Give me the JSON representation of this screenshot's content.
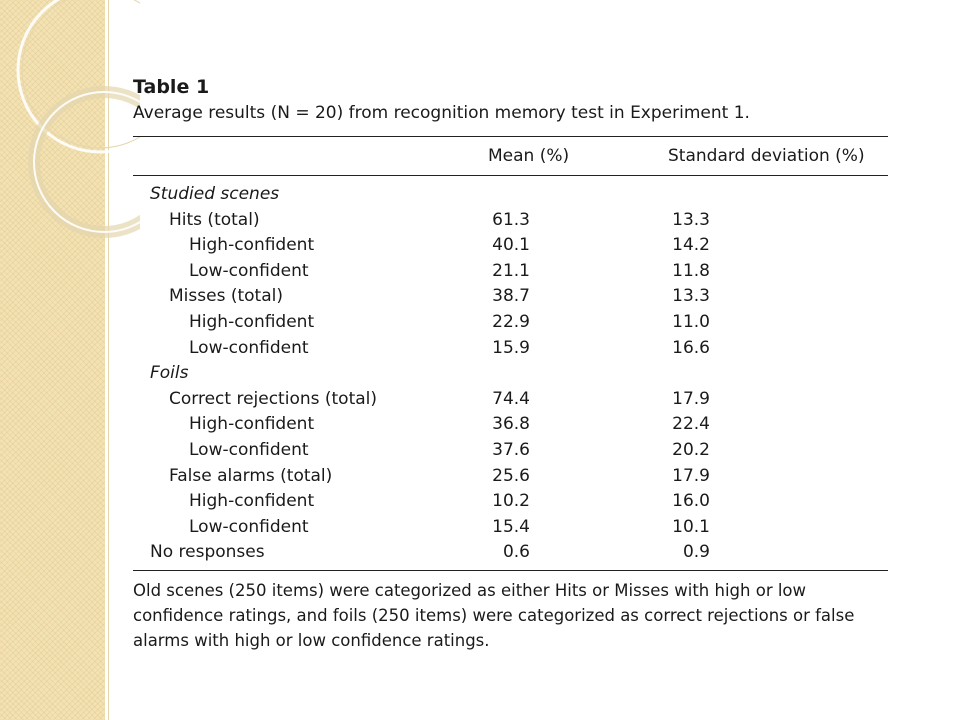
{
  "table": {
    "label": "Table 1",
    "caption": "Average results (N = 20) from recognition memory test in Experiment 1.",
    "columns": [
      "",
      "Mean (%)",
      "Standard deviation (%)"
    ],
    "rows": [
      {
        "label": "Studied scenes",
        "level": 0,
        "section": true,
        "mean": "",
        "sd": ""
      },
      {
        "label": "Hits (total)",
        "level": 1,
        "section": false,
        "mean": "61.3",
        "sd": "13.3"
      },
      {
        "label": "High-confident",
        "level": 2,
        "section": false,
        "mean": "40.1",
        "sd": "14.2"
      },
      {
        "label": "Low-confident",
        "level": 2,
        "section": false,
        "mean": "21.1",
        "sd": "11.8"
      },
      {
        "label": "Misses (total)",
        "level": 1,
        "section": false,
        "mean": "38.7",
        "sd": "13.3"
      },
      {
        "label": "High-confident",
        "level": 2,
        "section": false,
        "mean": "22.9",
        "sd": "11.0"
      },
      {
        "label": "Low-confident",
        "level": 2,
        "section": false,
        "mean": "15.9",
        "sd": "16.6"
      },
      {
        "label": "Foils",
        "level": 0,
        "section": true,
        "mean": "",
        "sd": ""
      },
      {
        "label": "Correct rejections (total)",
        "level": 1,
        "section": false,
        "mean": "74.4",
        "sd": "17.9"
      },
      {
        "label": "High-confident",
        "level": 2,
        "section": false,
        "mean": "36.8",
        "sd": "22.4"
      },
      {
        "label": "Low-confident",
        "level": 2,
        "section": false,
        "mean": "37.6",
        "sd": "20.2"
      },
      {
        "label": "False alarms (total)",
        "level": 1,
        "section": false,
        "mean": "25.6",
        "sd": "17.9"
      },
      {
        "label": "High-confident",
        "level": 2,
        "section": false,
        "mean": "10.2",
        "sd": "16.0"
      },
      {
        "label": "Low-confident",
        "level": 2,
        "section": false,
        "mean": "15.4",
        "sd": "10.1"
      },
      {
        "label": "No responses",
        "level": 0,
        "section": false,
        "mean": "0.6",
        "sd": "0.9"
      }
    ],
    "footnote": "Old scenes (250 items) were categorized as either Hits or Misses with high or low confidence ratings, and foils (250 items) were categorized as correct rejections or false alarms with high or low confidence ratings."
  },
  "theme": {
    "band_color": "#f3e2b3",
    "ring_color": "#e4d6ae"
  }
}
